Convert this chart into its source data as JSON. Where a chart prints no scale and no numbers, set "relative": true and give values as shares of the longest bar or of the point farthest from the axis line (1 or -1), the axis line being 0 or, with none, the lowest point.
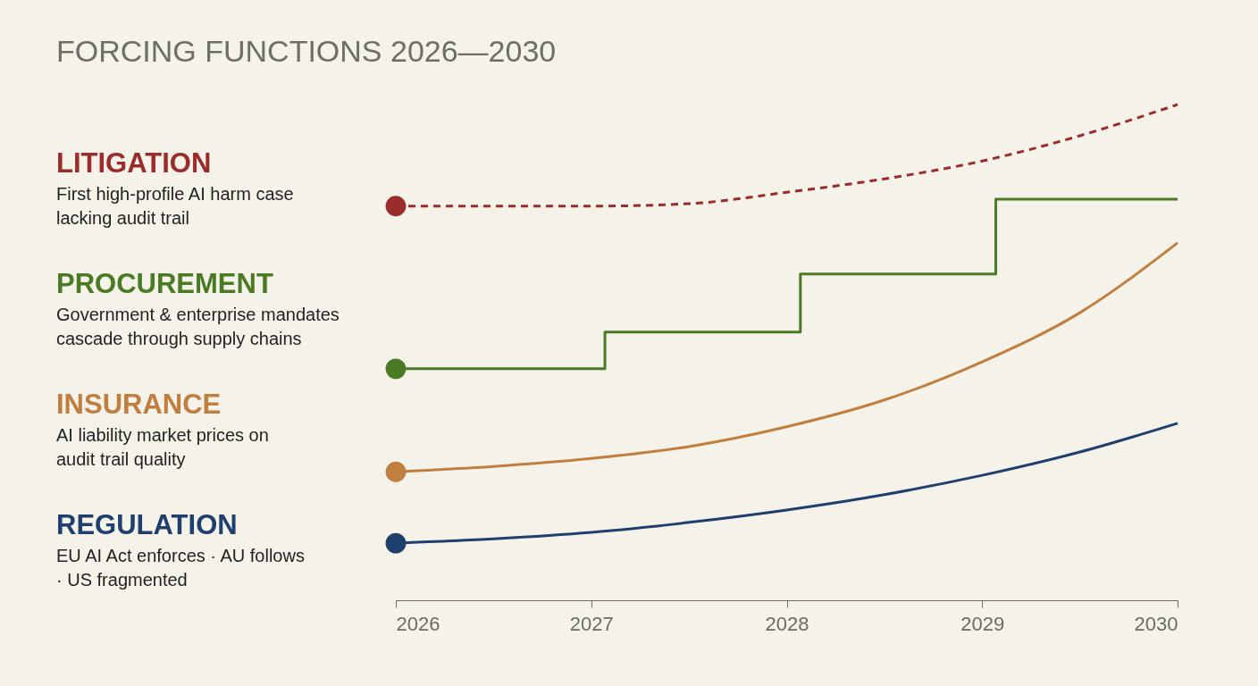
{
  "chart_data": {
    "type": "line",
    "title": "FORCING FUNCTIONS 2026—2030",
    "relative": true,
    "xlim": [
      2026,
      2030
    ],
    "xticks": [
      2026,
      2027,
      2028,
      2029,
      2030
    ],
    "grid": false,
    "series": [
      {
        "name": "LITIGATION",
        "color": "#9b2c2c",
        "line_style": "dashed",
        "x": [
          2026,
          2026.5,
          2027,
          2027.5,
          2028,
          2028.5,
          2029,
          2029.5,
          2030
        ],
        "values": [
          0.795,
          0.795,
          0.795,
          0.8,
          0.823,
          0.85,
          0.886,
          0.937,
          1
        ]
      },
      {
        "name": "PROCUREMENT",
        "color": "#4a7a23",
        "type": "step",
        "x": [
          2026,
          2027.07,
          2028.07,
          2029.07,
          2030
        ],
        "values": [
          0.467,
          0.541,
          0.658,
          0.809,
          0.809
        ]
      },
      {
        "name": "INSURANCE",
        "color": "#c07f3e",
        "x": [
          2026,
          2026.5,
          2027,
          2027.5,
          2028,
          2028.5,
          2029,
          2029.5,
          2030
        ],
        "values": [
          0.259,
          0.27,
          0.286,
          0.31,
          0.35,
          0.404,
          0.481,
          0.58,
          0.721
        ]
      },
      {
        "name": "REGULATION",
        "color": "#1f3f6e",
        "x": [
          2026,
          2026.5,
          2027,
          2027.5,
          2028,
          2028.5,
          2029,
          2029.5,
          2030
        ],
        "values": [
          0.115,
          0.124,
          0.137,
          0.157,
          0.182,
          0.213,
          0.252,
          0.299,
          0.357
        ]
      }
    ],
    "annotations": [
      "First high-profile AI harm case lacking audit trail",
      "Government & enterprise mandates cascade through supply chains",
      "AI liability market prices on audit trail quality",
      "EU AI Act enforces · AU follows · US fragmented"
    ]
  }
}
